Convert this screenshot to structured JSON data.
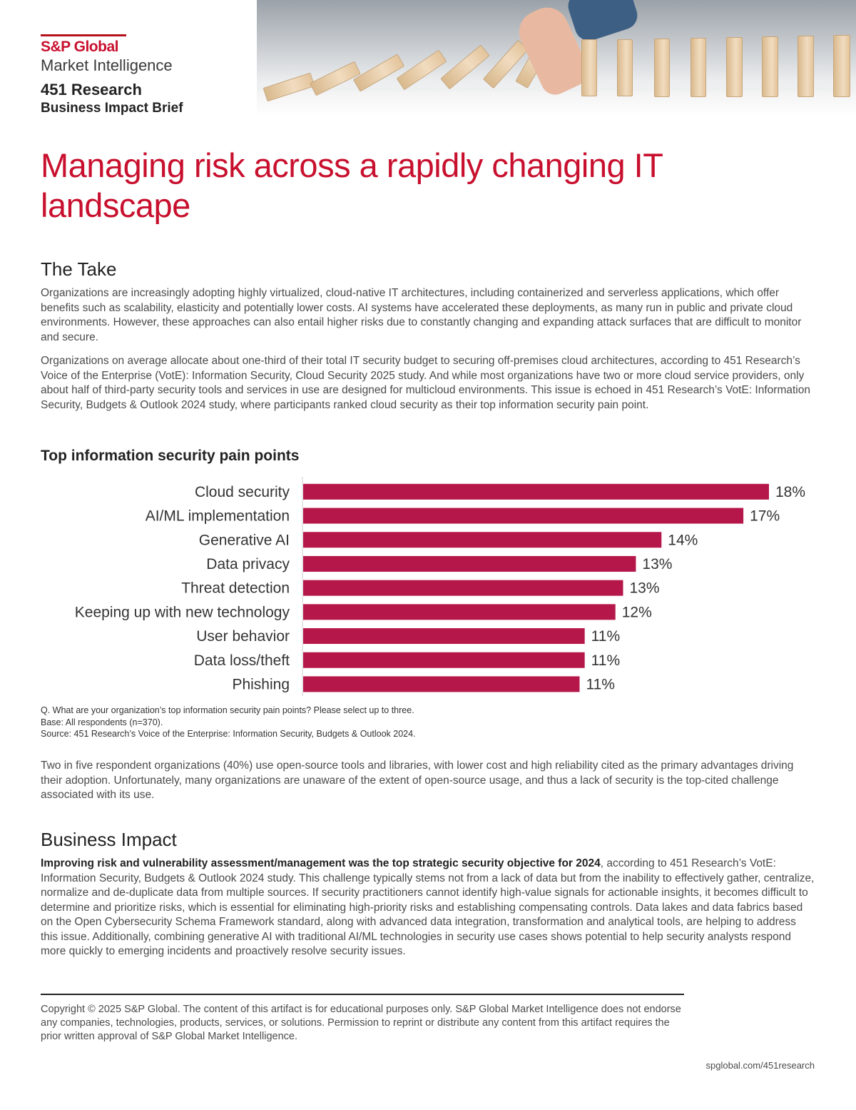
{
  "header": {
    "brand_name": "S&P Global",
    "brand_sub": "Market Intelligence",
    "research_name": "451 Research",
    "brief_type": "Business Impact Brief"
  },
  "title": "Managing risk across a rapidly changing IT landscape",
  "the_take": {
    "heading": "The Take",
    "paragraphs": [
      "Organizations are increasingly adopting highly virtualized, cloud-native IT architectures, including containerized and serverless applications, which offer benefits such as scalability, elasticity and potentially lower costs. AI systems have accelerated these deployments, as many run in public and private cloud environments. However, these approaches can also entail higher risks due to constantly changing and expanding attack surfaces that are difficult to monitor and secure.",
      "Organizations on average allocate about one-third of their total IT security budget to securing off-premises cloud architectures, according to 451 Research’s Voice of the Enterprise (VotE): Information Security, Cloud Security 2025 study. And while most organizations have two or more cloud service providers, only about half of third-party security tools and services in use are designed for multicloud environments. This issue is echoed in 451 Research’s VotE: Information Security, Budgets & Outlook 2024 study, where participants ranked cloud security as their top information security pain point."
    ]
  },
  "chart_data": {
    "type": "bar",
    "orientation": "horizontal",
    "title": "Top information security pain points",
    "categories": [
      "Cloud security",
      "AI/ML implementation",
      "Generative AI",
      "Data privacy",
      "Threat detection",
      "Keeping up with new technology",
      "User behavior",
      "Data loss/theft",
      "Phishing"
    ],
    "values": [
      18,
      17,
      14,
      13,
      13,
      12,
      11,
      11,
      11
    ],
    "value_labels": [
      "18%",
      "17%",
      "14%",
      "13%",
      "13%",
      "12%",
      "11%",
      "11%",
      "11%"
    ],
    "bar_lengths": [
      18.2,
      17.2,
      14.0,
      13.0,
      12.5,
      12.2,
      11.0,
      11.0,
      10.8
    ],
    "xlim": [
      0,
      18.2
    ],
    "unit": "%",
    "color": "#b5174b",
    "grid": false,
    "legend": "none"
  },
  "chart_notes": {
    "question": "Q. What are your organization’s top information security pain points? Please select up to three.",
    "base": "Base: All respondents (n=370).",
    "source": "Source: 451 Research’s Voice of the Enterprise: Information Security, Budgets & Outlook 2024."
  },
  "open_source_paragraph": "Two in five respondent organizations (40%) use open-source tools and libraries, with lower cost and high reliability cited as the primary advantages driving their adoption. Unfortunately, many organizations are unaware of the extent of open-source usage, and thus a lack of security is the top-cited challenge associated with its use.",
  "business_impact": {
    "heading": "Business Impact",
    "lead_bold": "Improving risk and vulnerability assessment/management was the top strategic security objective for 2024",
    "body": ", according to 451 Research’s VotE: Information Security, Budgets & Outlook 2024 study. This challenge typically stems not from a lack of data but from the inability to effectively gather, centralize, normalize and de-duplicate data from multiple sources. If security practitioners cannot identify high-value signals for actionable insights, it becomes difficult to determine and prioritize risks, which is essential for eliminating high-priority risks and establishing compensating controls. Data lakes and data fabrics based on the Open Cybersecurity Schema Framework standard, along with advanced data integration, transformation and analytical tools, are helping to address this issue. Additionally, combining generative AI with traditional AI/ML technologies in security use cases shows potential to help security analysts respond more quickly to emerging incidents and proactively resolve security issues."
  },
  "footer": {
    "copyright": "Copyright © 2025 S&P Global. The content of this artifact is for educational purposes only. S&P Global Market Intelligence does not endorse any companies, technologies, products, services, or solutions. Permission to reprint or distribute any content from this artifact requires the prior written approval of S&P Global Market Intelligence.",
    "url": "spglobal.com/451research"
  },
  "colors": {
    "brand_red": "#c8102e",
    "bar_color": "#b5174b",
    "text": "#4a4a4a"
  },
  "hero_image": "dominoes-falling-stopped-by-hand"
}
